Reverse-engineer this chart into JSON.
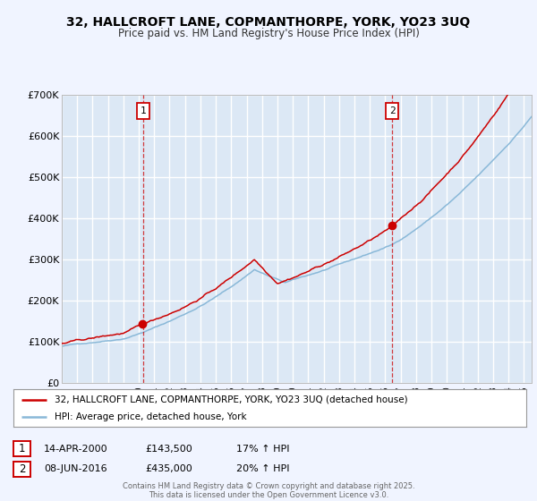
{
  "title_line1": "32, HALLCROFT LANE, COPMANTHORPE, YORK, YO23 3UQ",
  "title_line2": "Price paid vs. HM Land Registry's House Price Index (HPI)",
  "background_color": "#f0f4ff",
  "plot_bg_color": "#dce8f5",
  "grid_color": "#ffffff",
  "line1_color": "#cc0000",
  "line2_color": "#89b8d8",
  "sale1_year": 2000.29,
  "sale1_price": 143500,
  "sale2_year": 2016.44,
  "sale2_price": 435000,
  "ylim_max": 700000,
  "ylim_min": 0,
  "legend_line1": "32, HALLCROFT LANE, COPMANTHORPE, YORK, YO23 3UQ (detached house)",
  "legend_line2": "HPI: Average price, detached house, York",
  "annotation1_date": "14-APR-2000",
  "annotation1_price": "£143,500",
  "annotation1_hpi": "17% ↑ HPI",
  "annotation2_date": "08-JUN-2016",
  "annotation2_price": "£435,000",
  "annotation2_hpi": "20% ↑ HPI",
  "footer": "Contains HM Land Registry data © Crown copyright and database right 2025.\nThis data is licensed under the Open Government Licence v3.0."
}
